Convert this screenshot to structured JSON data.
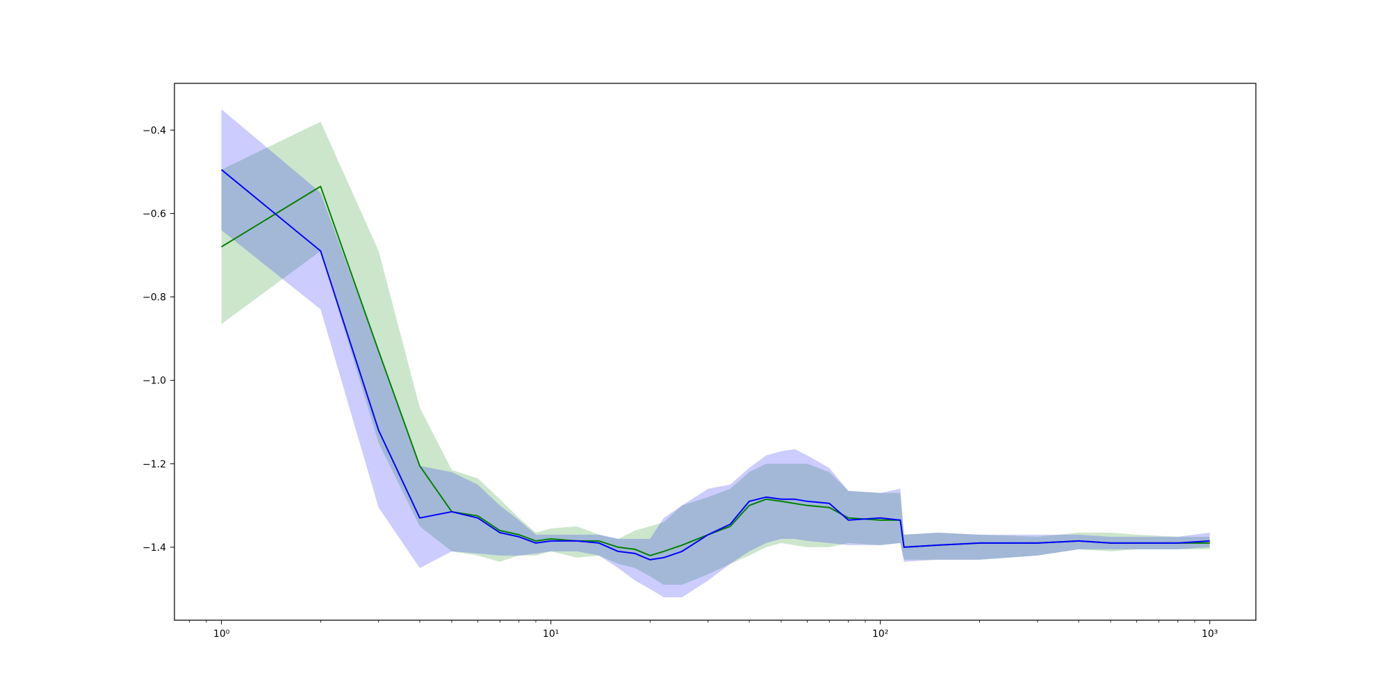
{
  "chart_data": {
    "type": "line",
    "title": "",
    "xlabel": "",
    "ylabel": "",
    "xscale": "log",
    "xlim": [
      0.72,
      1380
    ],
    "ylim": [
      -1.575,
      -0.288
    ],
    "grid": false,
    "legend": "none",
    "xticks": [
      {
        "value": 1,
        "label": "10⁰"
      },
      {
        "value": 10,
        "label": "10¹"
      },
      {
        "value": 100,
        "label": "10²"
      },
      {
        "value": 1000,
        "label": "10³"
      }
    ],
    "yticks": [
      {
        "value": -0.4,
        "label": "−0.4"
      },
      {
        "value": -0.6,
        "label": "−0.6"
      },
      {
        "value": -0.8,
        "label": "−0.8"
      },
      {
        "value": -1.0,
        "label": "−1.0"
      },
      {
        "value": -1.2,
        "label": "−1.2"
      },
      {
        "value": -1.4,
        "label": "−1.4"
      }
    ],
    "series": [
      {
        "color": "#008000",
        "band_color": "#008000",
        "points": [
          [
            1,
            -0.68,
            -0.865,
            -0.495
          ],
          [
            2,
            -0.535,
            -0.69,
            -0.38
          ],
          [
            3,
            -0.93,
            -1.15,
            -0.69
          ],
          [
            4,
            -1.205,
            -1.35,
            -1.065
          ],
          [
            5,
            -1.315,
            -1.41,
            -1.215
          ],
          [
            6,
            -1.325,
            -1.42,
            -1.235
          ],
          [
            7,
            -1.36,
            -1.435,
            -1.285
          ],
          [
            8,
            -1.37,
            -1.42,
            -1.33
          ],
          [
            9,
            -1.385,
            -1.42,
            -1.365
          ],
          [
            10,
            -1.38,
            -1.41,
            -1.355
          ],
          [
            12,
            -1.385,
            -1.425,
            -1.35
          ],
          [
            14,
            -1.385,
            -1.42,
            -1.37
          ],
          [
            16,
            -1.4,
            -1.44,
            -1.38
          ],
          [
            18,
            -1.405,
            -1.45,
            -1.36
          ],
          [
            20,
            -1.42,
            -1.47,
            -1.35
          ],
          [
            22,
            -1.41,
            -1.49,
            -1.34
          ],
          [
            25,
            -1.395,
            -1.49,
            -1.3
          ],
          [
            30,
            -1.37,
            -1.465,
            -1.28
          ],
          [
            35,
            -1.35,
            -1.44,
            -1.26
          ],
          [
            40,
            -1.3,
            -1.42,
            -1.22
          ],
          [
            45,
            -1.285,
            -1.4,
            -1.2
          ],
          [
            50,
            -1.29,
            -1.39,
            -1.2
          ],
          [
            60,
            -1.3,
            -1.4,
            -1.2
          ],
          [
            70,
            -1.305,
            -1.4,
            -1.22
          ],
          [
            80,
            -1.33,
            -1.39,
            -1.265
          ],
          [
            100,
            -1.335,
            -1.395,
            -1.27
          ],
          [
            115,
            -1.335,
            -1.39,
            -1.27
          ],
          [
            118,
            -1.4,
            -1.43,
            -1.37
          ],
          [
            150,
            -1.395,
            -1.43,
            -1.365
          ],
          [
            200,
            -1.39,
            -1.43,
            -1.37
          ],
          [
            300,
            -1.39,
            -1.42,
            -1.375
          ],
          [
            400,
            -1.385,
            -1.405,
            -1.365
          ],
          [
            500,
            -1.39,
            -1.41,
            -1.365
          ],
          [
            600,
            -1.39,
            -1.405,
            -1.37
          ],
          [
            800,
            -1.39,
            -1.405,
            -1.375
          ],
          [
            1000,
            -1.39,
            -1.405,
            -1.375
          ]
        ]
      },
      {
        "color": "#0000ff",
        "band_color": "#0000ff",
        "points": [
          [
            1,
            -0.495,
            -0.64,
            -0.35
          ],
          [
            2,
            -0.69,
            -0.83,
            -0.55
          ],
          [
            3,
            -1.12,
            -1.305,
            -0.93
          ],
          [
            4,
            -1.33,
            -1.45,
            -1.205
          ],
          [
            5,
            -1.315,
            -1.41,
            -1.22
          ],
          [
            6,
            -1.33,
            -1.415,
            -1.25
          ],
          [
            7,
            -1.365,
            -1.42,
            -1.3
          ],
          [
            8,
            -1.375,
            -1.42,
            -1.335
          ],
          [
            9,
            -1.39,
            -1.415,
            -1.37
          ],
          [
            10,
            -1.385,
            -1.41,
            -1.37
          ],
          [
            12,
            -1.385,
            -1.41,
            -1.37
          ],
          [
            14,
            -1.39,
            -1.42,
            -1.37
          ],
          [
            16,
            -1.41,
            -1.45,
            -1.38
          ],
          [
            18,
            -1.415,
            -1.48,
            -1.38
          ],
          [
            20,
            -1.43,
            -1.5,
            -1.38
          ],
          [
            22,
            -1.425,
            -1.52,
            -1.33
          ],
          [
            25,
            -1.41,
            -1.52,
            -1.3
          ],
          [
            30,
            -1.37,
            -1.48,
            -1.26
          ],
          [
            35,
            -1.345,
            -1.44,
            -1.25
          ],
          [
            40,
            -1.29,
            -1.41,
            -1.21
          ],
          [
            45,
            -1.28,
            -1.39,
            -1.18
          ],
          [
            50,
            -1.285,
            -1.38,
            -1.17
          ],
          [
            55,
            -1.285,
            -1.38,
            -1.165
          ],
          [
            60,
            -1.29,
            -1.385,
            -1.18
          ],
          [
            70,
            -1.295,
            -1.39,
            -1.21
          ],
          [
            80,
            -1.335,
            -1.395,
            -1.265
          ],
          [
            100,
            -1.33,
            -1.395,
            -1.27
          ],
          [
            115,
            -1.335,
            -1.39,
            -1.26
          ],
          [
            118,
            -1.4,
            -1.435,
            -1.37
          ],
          [
            150,
            -1.395,
            -1.43,
            -1.365
          ],
          [
            200,
            -1.39,
            -1.43,
            -1.37
          ],
          [
            300,
            -1.39,
            -1.42,
            -1.37
          ],
          [
            400,
            -1.385,
            -1.405,
            -1.37
          ],
          [
            500,
            -1.39,
            -1.405,
            -1.375
          ],
          [
            600,
            -1.39,
            -1.405,
            -1.375
          ],
          [
            800,
            -1.39,
            -1.405,
            -1.375
          ],
          [
            1000,
            -1.385,
            -1.4,
            -1.365
          ]
        ]
      }
    ]
  }
}
